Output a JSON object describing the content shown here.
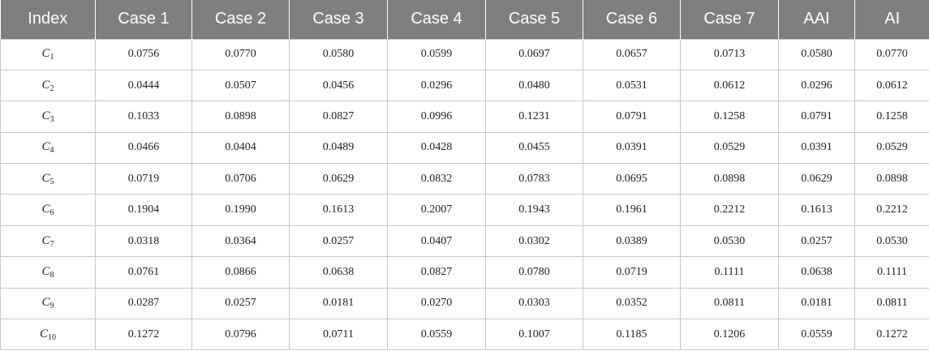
{
  "table": {
    "headers": [
      "Index",
      "Case 1",
      "Case 2",
      "Case 3",
      "Case 4",
      "Case 5",
      "Case 6",
      "Case 7",
      "AAI",
      "AI"
    ],
    "rows": [
      {
        "index": {
          "letter": "C",
          "sub": "1"
        },
        "values": [
          "0.0756",
          "0.0770",
          "0.0580",
          "0.0599",
          "0.0697",
          "0.0657",
          "0.0713",
          "0.0580",
          "0.0770"
        ]
      },
      {
        "index": {
          "letter": "C",
          "sub": "2"
        },
        "values": [
          "0.0444",
          "0.0507",
          "0.0456",
          "0.0296",
          "0.0480",
          "0.0531",
          "0.0612",
          "0.0296",
          "0.0612"
        ]
      },
      {
        "index": {
          "letter": "C",
          "sub": "3"
        },
        "values": [
          "0.1033",
          "0.0898",
          "0.0827",
          "0.0996",
          "0.1231",
          "0.0791",
          "0.1258",
          "0.0791",
          "0.1258"
        ]
      },
      {
        "index": {
          "letter": "C",
          "sub": "4"
        },
        "values": [
          "0.0466",
          "0.0404",
          "0.0489",
          "0.0428",
          "0.0455",
          "0.0391",
          "0.0529",
          "0.0391",
          "0.0529"
        ]
      },
      {
        "index": {
          "letter": "C",
          "sub": "5"
        },
        "values": [
          "0.0719",
          "0.0706",
          "0.0629",
          "0.0832",
          "0.0783",
          "0.0695",
          "0.0898",
          "0.0629",
          "0.0898"
        ]
      },
      {
        "index": {
          "letter": "C",
          "sub": "6"
        },
        "values": [
          "0.1904",
          "0.1990",
          "0.1613",
          "0.2007",
          "0.1943",
          "0.1961",
          "0.2212",
          "0.1613",
          "0.2212"
        ]
      },
      {
        "index": {
          "letter": "C",
          "sub": "7"
        },
        "values": [
          "0.0318",
          "0.0364",
          "0.0257",
          "0.0407",
          "0.0302",
          "0.0389",
          "0.0530",
          "0.0257",
          "0.0530"
        ]
      },
      {
        "index": {
          "letter": "C",
          "sub": "8"
        },
        "values": [
          "0.0761",
          "0.0866",
          "0.0638",
          "0.0827",
          "0.0780",
          "0.0719",
          "0.1111",
          "0.0638",
          "0.1111"
        ]
      },
      {
        "index": {
          "letter": "C",
          "sub": "9"
        },
        "values": [
          "0.0287",
          "0.0257",
          "0.0181",
          "0.0270",
          "0.0303",
          "0.0352",
          "0.0811",
          "0.0181",
          "0.0811"
        ]
      },
      {
        "index": {
          "letter": "C",
          "sub": "10"
        },
        "values": [
          "0.1272",
          "0.0796",
          "0.0711",
          "0.0559",
          "0.1007",
          "0.1185",
          "0.1206",
          "0.0559",
          "0.1272"
        ]
      }
    ]
  },
  "colors": {
    "header_bg": "#7f7f7f",
    "header_text": "#ffffff",
    "grid_line": "#c8c8c8"
  }
}
